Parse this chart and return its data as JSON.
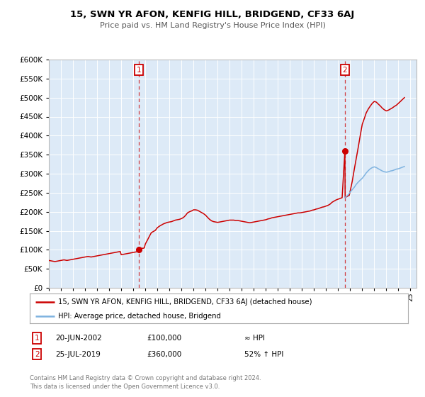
{
  "title": "15, SWN YR AFON, KENFIG HILL, BRIDGEND, CF33 6AJ",
  "subtitle": "Price paid vs. HM Land Registry's House Price Index (HPI)",
  "ylim": [
    0,
    600000
  ],
  "yticks": [
    0,
    50000,
    100000,
    150000,
    200000,
    250000,
    300000,
    350000,
    400000,
    450000,
    500000,
    550000,
    600000
  ],
  "xlim_start": 1995,
  "xlim_end": 2025.5,
  "bg_color": "#ddeaf7",
  "fig_bg": "#ffffff",
  "red_color": "#cc0000",
  "blue_color": "#7fb3e0",
  "marker1_x": 2002.47,
  "marker1_y": 100000,
  "marker2_x": 2019.56,
  "marker2_y": 360000,
  "legend_line1": "15, SWN YR AFON, KENFIG HILL, BRIDGEND, CF33 6AJ (detached house)",
  "legend_line2": "HPI: Average price, detached house, Bridgend",
  "table_row1": [
    "1",
    "20-JUN-2002",
    "£100,000",
    "≈ HPI"
  ],
  "table_row2": [
    "2",
    "25-JUL-2019",
    "£360,000",
    "52% ↑ HPI"
  ],
  "footer": "Contains HM Land Registry data © Crown copyright and database right 2024.\nThis data is licensed under the Open Government Licence v3.0.",
  "hpi_red_x": [
    1995.0,
    1995.08,
    1995.17,
    1995.25,
    1995.33,
    1995.42,
    1995.5,
    1995.58,
    1995.67,
    1995.75,
    1995.83,
    1995.92,
    1996.0,
    1996.08,
    1996.17,
    1996.25,
    1996.33,
    1996.42,
    1996.5,
    1996.58,
    1996.67,
    1996.75,
    1996.83,
    1996.92,
    1997.0,
    1997.08,
    1997.17,
    1997.25,
    1997.33,
    1997.42,
    1997.5,
    1997.58,
    1997.67,
    1997.75,
    1997.83,
    1997.92,
    1998.0,
    1998.08,
    1998.17,
    1998.25,
    1998.33,
    1998.42,
    1998.5,
    1998.58,
    1998.67,
    1998.75,
    1998.83,
    1998.92,
    1999.0,
    1999.08,
    1999.17,
    1999.25,
    1999.33,
    1999.42,
    1999.5,
    1999.58,
    1999.67,
    1999.75,
    1999.83,
    1999.92,
    2000.0,
    2000.08,
    2000.17,
    2000.25,
    2000.33,
    2000.42,
    2000.5,
    2000.58,
    2000.67,
    2000.75,
    2000.83,
    2000.92,
    2001.0,
    2001.08,
    2001.17,
    2001.25,
    2001.33,
    2001.42,
    2001.5,
    2001.58,
    2001.67,
    2001.75,
    2001.83,
    2001.92,
    2002.0,
    2002.08,
    2002.17,
    2002.25,
    2002.33,
    2002.42,
    2002.47,
    2002.5,
    2002.58,
    2002.67,
    2002.75,
    2002.83,
    2002.92,
    2003.0,
    2003.17,
    2003.33,
    2003.5,
    2003.67,
    2003.83,
    2004.0,
    2004.17,
    2004.33,
    2004.5,
    2004.67,
    2004.83,
    2005.0,
    2005.17,
    2005.33,
    2005.5,
    2005.67,
    2005.83,
    2006.0,
    2006.17,
    2006.33,
    2006.5,
    2006.67,
    2006.83,
    2007.0,
    2007.17,
    2007.33,
    2007.5,
    2007.67,
    2007.83,
    2008.0,
    2008.17,
    2008.33,
    2008.5,
    2008.67,
    2008.83,
    2009.0,
    2009.17,
    2009.33,
    2009.5,
    2009.67,
    2009.83,
    2010.0,
    2010.17,
    2010.33,
    2010.5,
    2010.67,
    2010.83,
    2011.0,
    2011.17,
    2011.33,
    2011.5,
    2011.67,
    2011.83,
    2012.0,
    2012.17,
    2012.33,
    2012.5,
    2012.67,
    2012.83,
    2013.0,
    2013.17,
    2013.33,
    2013.5,
    2013.67,
    2013.83,
    2014.0,
    2014.17,
    2014.33,
    2014.5,
    2014.67,
    2014.83,
    2015.0,
    2015.17,
    2015.33,
    2015.5,
    2015.67,
    2015.83,
    2016.0,
    2016.17,
    2016.33,
    2016.5,
    2016.67,
    2016.83,
    2017.0,
    2017.17,
    2017.33,
    2017.5,
    2017.67,
    2017.83,
    2018.0,
    2018.17,
    2018.33,
    2018.5,
    2018.67,
    2018.83,
    2019.0,
    2019.17,
    2019.33,
    2019.56,
    2019.58,
    2019.67,
    2019.75,
    2019.83,
    2019.92,
    2020.0,
    2020.17,
    2020.33,
    2020.5,
    2020.67,
    2020.83,
    2021.0,
    2021.17,
    2021.33,
    2021.5,
    2021.67,
    2021.83,
    2022.0,
    2022.17,
    2022.33,
    2022.5,
    2022.67,
    2022.83,
    2023.0,
    2023.17,
    2023.33,
    2023.5,
    2023.67,
    2023.83,
    2024.0,
    2024.17,
    2024.33,
    2024.5
  ],
  "hpi_red_y": [
    72000,
    71500,
    71000,
    70500,
    70000,
    69500,
    69000,
    69500,
    70000,
    70500,
    71000,
    71500,
    72000,
    72500,
    73000,
    73500,
    73000,
    72500,
    72000,
    72500,
    73000,
    73500,
    74000,
    74500,
    75000,
    75500,
    76000,
    76500,
    77000,
    77500,
    78000,
    78500,
    79000,
    79500,
    80000,
    80500,
    81000,
    81500,
    82000,
    82500,
    82000,
    81500,
    81000,
    81500,
    82000,
    82500,
    83000,
    83500,
    84000,
    84500,
    85000,
    85500,
    86000,
    86500,
    87000,
    87500,
    88000,
    88500,
    89000,
    89500,
    90000,
    90500,
    91000,
    91500,
    92000,
    92500,
    93000,
    93500,
    94000,
    94500,
    95000,
    95500,
    87000,
    87500,
    88000,
    88500,
    89000,
    89500,
    90000,
    90500,
    91000,
    91500,
    92000,
    92500,
    93000,
    93500,
    94000,
    94500,
    95000,
    95500,
    100000,
    101000,
    102000,
    103000,
    104000,
    104000,
    105000,
    115000,
    125000,
    135000,
    145000,
    148000,
    151000,
    158000,
    162000,
    165000,
    168000,
    170000,
    172000,
    173000,
    174000,
    176000,
    178000,
    179000,
    180000,
    182000,
    185000,
    190000,
    197000,
    200000,
    202000,
    205000,
    205000,
    204000,
    201000,
    198000,
    195000,
    191000,
    185000,
    180000,
    176000,
    174000,
    173000,
    172000,
    173000,
    174000,
    175000,
    176000,
    177000,
    178000,
    178000,
    178000,
    177000,
    177000,
    176000,
    175000,
    174000,
    173000,
    172000,
    171000,
    172000,
    173000,
    174000,
    175000,
    176000,
    177000,
    178000,
    179000,
    181000,
    182000,
    184000,
    185000,
    186000,
    187000,
    188000,
    189000,
    190000,
    191000,
    192000,
    193000,
    194000,
    195000,
    196000,
    197000,
    197000,
    198000,
    199000,
    200000,
    201000,
    202000,
    204000,
    205000,
    207000,
    208000,
    210000,
    212000,
    213000,
    215000,
    217000,
    220000,
    225000,
    228000,
    231000,
    233000,
    235000,
    237000,
    360000,
    238000,
    239000,
    240000,
    242000,
    243000,
    255000,
    280000,
    310000,
    340000,
    370000,
    400000,
    430000,
    445000,
    460000,
    470000,
    478000,
    485000,
    490000,
    488000,
    483000,
    478000,
    472000,
    468000,
    465000,
    467000,
    470000,
    473000,
    477000,
    480000,
    485000,
    490000,
    495000,
    500000
  ],
  "hpi_blue_x": [
    2019.56,
    2019.58,
    2019.67,
    2019.75,
    2019.83,
    2019.92,
    2020.0,
    2020.17,
    2020.33,
    2020.5,
    2020.67,
    2020.83,
    2021.0,
    2021.17,
    2021.33,
    2021.5,
    2021.67,
    2021.83,
    2022.0,
    2022.17,
    2022.33,
    2022.5,
    2022.67,
    2022.83,
    2023.0,
    2023.17,
    2023.33,
    2023.5,
    2023.67,
    2023.83,
    2024.0,
    2024.17,
    2024.33,
    2024.5
  ],
  "hpi_blue_y": [
    237000,
    238000,
    240000,
    242000,
    245000,
    248000,
    252000,
    258000,
    264000,
    272000,
    278000,
    283000,
    288000,
    295000,
    302000,
    308000,
    313000,
    316000,
    318000,
    316000,
    313000,
    310000,
    307000,
    305000,
    304000,
    305000,
    307000,
    308000,
    310000,
    312000,
    313000,
    315000,
    317000,
    319000
  ]
}
